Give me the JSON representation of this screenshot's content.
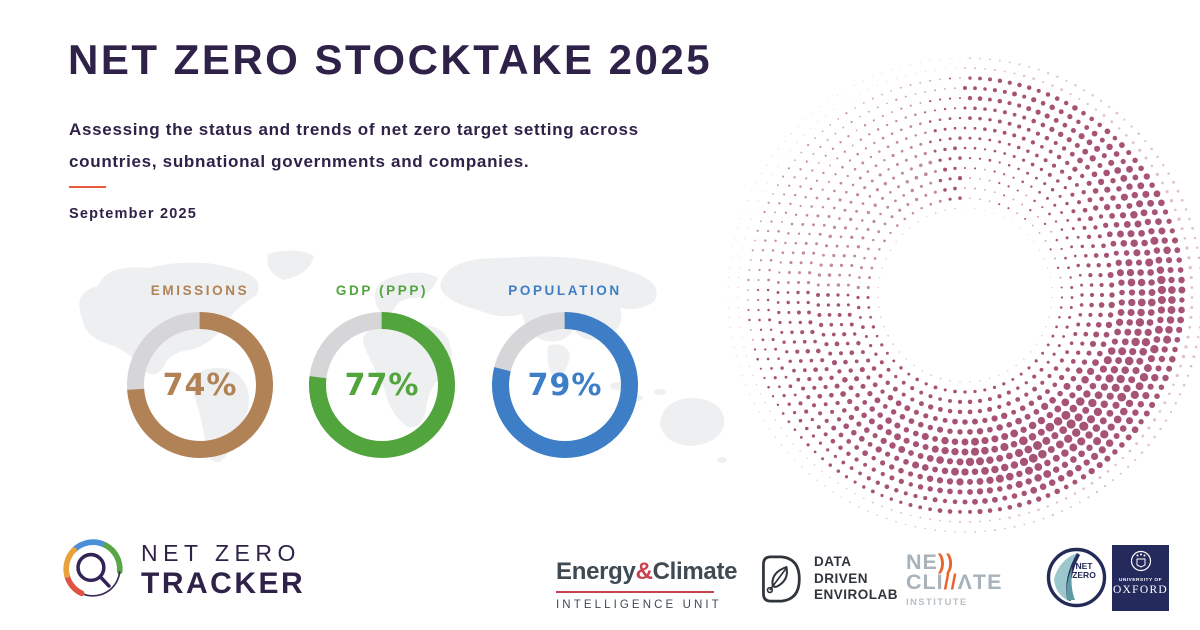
{
  "page": {
    "title": "NET ZERO STOCKTAKE 2025",
    "subtitle_line1": "Assessing the status and trends of net zero target setting across",
    "subtitle_line2": "countries, subnational governments and companies.",
    "date": "September 2025"
  },
  "colors": {
    "ink": "#2f2249",
    "divider": "#e85c3f",
    "map": "#edeff1",
    "dots": "#a24a6e",
    "donut_track": "#d6d6d8"
  },
  "chart_data": [
    {
      "type": "donut",
      "label": "EMISSIONS",
      "value": 74,
      "unit": "%",
      "display": "74%",
      "color": "#b08255"
    },
    {
      "type": "donut",
      "label": "GDP (PPP)",
      "value": 77,
      "unit": "%",
      "display": "77%",
      "color": "#52a43c"
    },
    {
      "type": "donut",
      "label": "POPULATION",
      "value": 79,
      "unit": "%",
      "display": "79%",
      "color": "#3d7ec6"
    }
  ],
  "footer": {
    "net_zero_tracker": {
      "line1": "NET ZERO",
      "line2": "TRACKER"
    },
    "eciu": {
      "word1": "Energy",
      "amp": "&",
      "word2": "Climate",
      "tagline": "INTELLIGENCE UNIT"
    },
    "envirolab": {
      "line1": "DATA",
      "line2": "DRIVEN",
      "line3": "ENVIROLAB"
    },
    "newclimate": {
      "l1_gray": "NE",
      "l1_orange": "))",
      "l2_gray1": "CLI",
      "l2_orange": "//",
      "l2_gray2": "ΛTE",
      "tagline": "INSTITUTE"
    },
    "netzero_badge": {
      "line1": "NET",
      "line2": "ZERO"
    },
    "oxford": {
      "line1": "UNIVERSITY OF",
      "line2": "OXFORD"
    }
  }
}
